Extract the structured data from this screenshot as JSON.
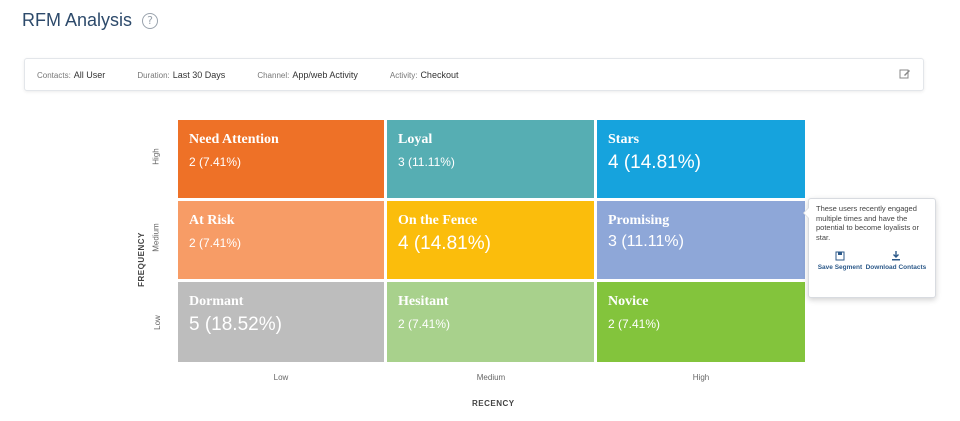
{
  "header": {
    "title": "RFM Analysis",
    "help_icon": "question-circle-icon"
  },
  "filters": [
    {
      "label": "Contacts:",
      "value": "All User"
    },
    {
      "label": "Duration:",
      "value": "Last 30 Days"
    },
    {
      "label": "Channel:",
      "value": "App/web Activity"
    },
    {
      "label": "Activity:",
      "value": "Checkout"
    }
  ],
  "edit_icon": "edit-icon",
  "grid": {
    "y_axis_title": "FREQUENCY",
    "x_axis_title": "RECENCY",
    "y_ticks": [
      "High",
      "Medium",
      "Low"
    ],
    "x_ticks": [
      "Low",
      "Medium",
      "High"
    ],
    "cells": [
      {
        "name": "Need Attention",
        "value": "2 (7.41%)",
        "color": "#ee7127",
        "big": false
      },
      {
        "name": "Loyal",
        "value": "3 (11.11%)",
        "color": "#56aeb3",
        "big": false
      },
      {
        "name": "Stars",
        "value": "4 (14.81%)",
        "color": "#16a3dd",
        "big": true
      },
      {
        "name": "At Risk",
        "value": "2 (7.41%)",
        "color": "#f79c66",
        "big": false
      },
      {
        "name": "On the Fence",
        "value": "4 (14.81%)",
        "color": "#fbbd0c",
        "big": true
      },
      {
        "name": "Promising",
        "value": "3 (11.11%)",
        "color": "#8ea7d8",
        "big": false
      },
      {
        "name": "Dormant",
        "value": "5 (18.52%)",
        "color": "#bdbdbd",
        "big": true
      },
      {
        "name": "Hesitant",
        "value": "2 (7.41%)",
        "color": "#a8d18c",
        "big": false
      },
      {
        "name": "Novice",
        "value": "2 (7.41%)",
        "color": "#83c43c",
        "big": false
      }
    ]
  },
  "tooltip": {
    "text": "These users recently engaged multiple times and have the potential to become loyalists or star.",
    "save_label": "Save Segment",
    "download_label": "Download Contacts",
    "save_icon": "save-icon",
    "download_icon": "download-icon"
  }
}
